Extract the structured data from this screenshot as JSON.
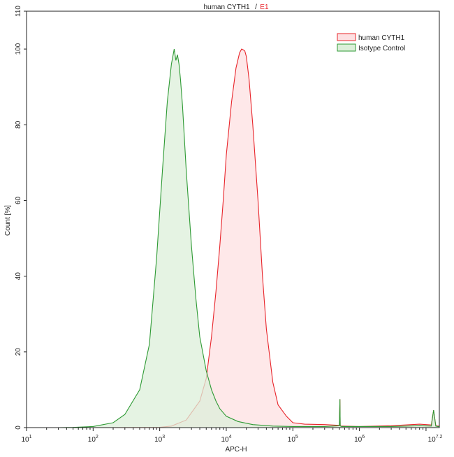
{
  "chart_data": {
    "type": "area",
    "title": "human CYTH1",
    "title_gate": "E1",
    "title_separator": "/",
    "xlabel": "APC-H",
    "ylabel": "Count [%]",
    "x_scale": "log",
    "xlim": [
      10,
      15848931.9
    ],
    "ylim": [
      0,
      110
    ],
    "x_ticks": [
      {
        "base": "10",
        "exp": "1",
        "value": 10
      },
      {
        "base": "10",
        "exp": "2",
        "value": 100
      },
      {
        "base": "10",
        "exp": "3",
        "value": 1000
      },
      {
        "base": "10",
        "exp": "4",
        "value": 10000
      },
      {
        "base": "10",
        "exp": "5",
        "value": 100000
      },
      {
        "base": "10",
        "exp": "6",
        "value": 1000000
      },
      {
        "base": "10",
        "exp": "7.2",
        "value": 15848931.9
      }
    ],
    "y_ticks": [
      0,
      20,
      40,
      60,
      80,
      100,
      110
    ],
    "grid": false,
    "legend_position": "top-right",
    "series": [
      {
        "name": "human CYTH1",
        "stroke": "#e8242a",
        "fill": "#fde0e2",
        "x": [
          100,
          1000,
          1500,
          2500,
          4000,
          5000,
          6000,
          7000,
          8000,
          9000,
          10000,
          12000,
          14000,
          15849,
          17000,
          18000,
          19000,
          20000,
          22000,
          25000,
          30000,
          35000,
          40000,
          50000,
          60000,
          80000,
          100000,
          150000,
          300000,
          500000,
          510000,
          515000,
          520000,
          540000,
          1000000,
          3000000,
          8000000,
          12000000,
          13000000,
          14000000,
          15000000,
          15848932
        ],
        "y": [
          0,
          0.1,
          0.4,
          2,
          7,
          13,
          24,
          36,
          48,
          60,
          72,
          86,
          95,
          99,
          100,
          99.8,
          99.5,
          98,
          92,
          80,
          60,
          40,
          26,
          12,
          6,
          3,
          1.3,
          0.9,
          0.8,
          0.6,
          7.5,
          0.6,
          0.4,
          0.4,
          0.3,
          0.5,
          0.9,
          0.7,
          4.6,
          0.5,
          0.4,
          0.4
        ]
      },
      {
        "name": "Isotype Control",
        "stroke": "#2e9a34",
        "fill": "#dcefd9",
        "x": [
          10,
          30,
          50,
          100,
          200,
          300,
          500,
          700,
          900,
          1100,
          1300,
          1500,
          1650,
          1750,
          1850,
          1950,
          2050,
          2200,
          2500,
          3000,
          3500,
          4000,
          5000,
          6000,
          7000,
          8000,
          10000,
          15000,
          25000,
          50000,
          100000,
          300000,
          500000,
          510000,
          515000,
          520000,
          540000,
          1000000,
          3000000,
          8000000,
          12000000,
          13000000,
          14000000,
          15000000,
          15848932
        ],
        "y": [
          0,
          0,
          0.05,
          0.3,
          1.3,
          3.5,
          10,
          22,
          45,
          68,
          86,
          96,
          100,
          97,
          98.5,
          96,
          92,
          85,
          68,
          48,
          34,
          24,
          15,
          10,
          7,
          5,
          3,
          1.6,
          0.8,
          0.4,
          0.3,
          0.3,
          0.5,
          7.5,
          0.5,
          0.4,
          0.3,
          0.3,
          0.3,
          0.5,
          0.4,
          4.6,
          0.4,
          0.3,
          0.3
        ]
      }
    ]
  }
}
